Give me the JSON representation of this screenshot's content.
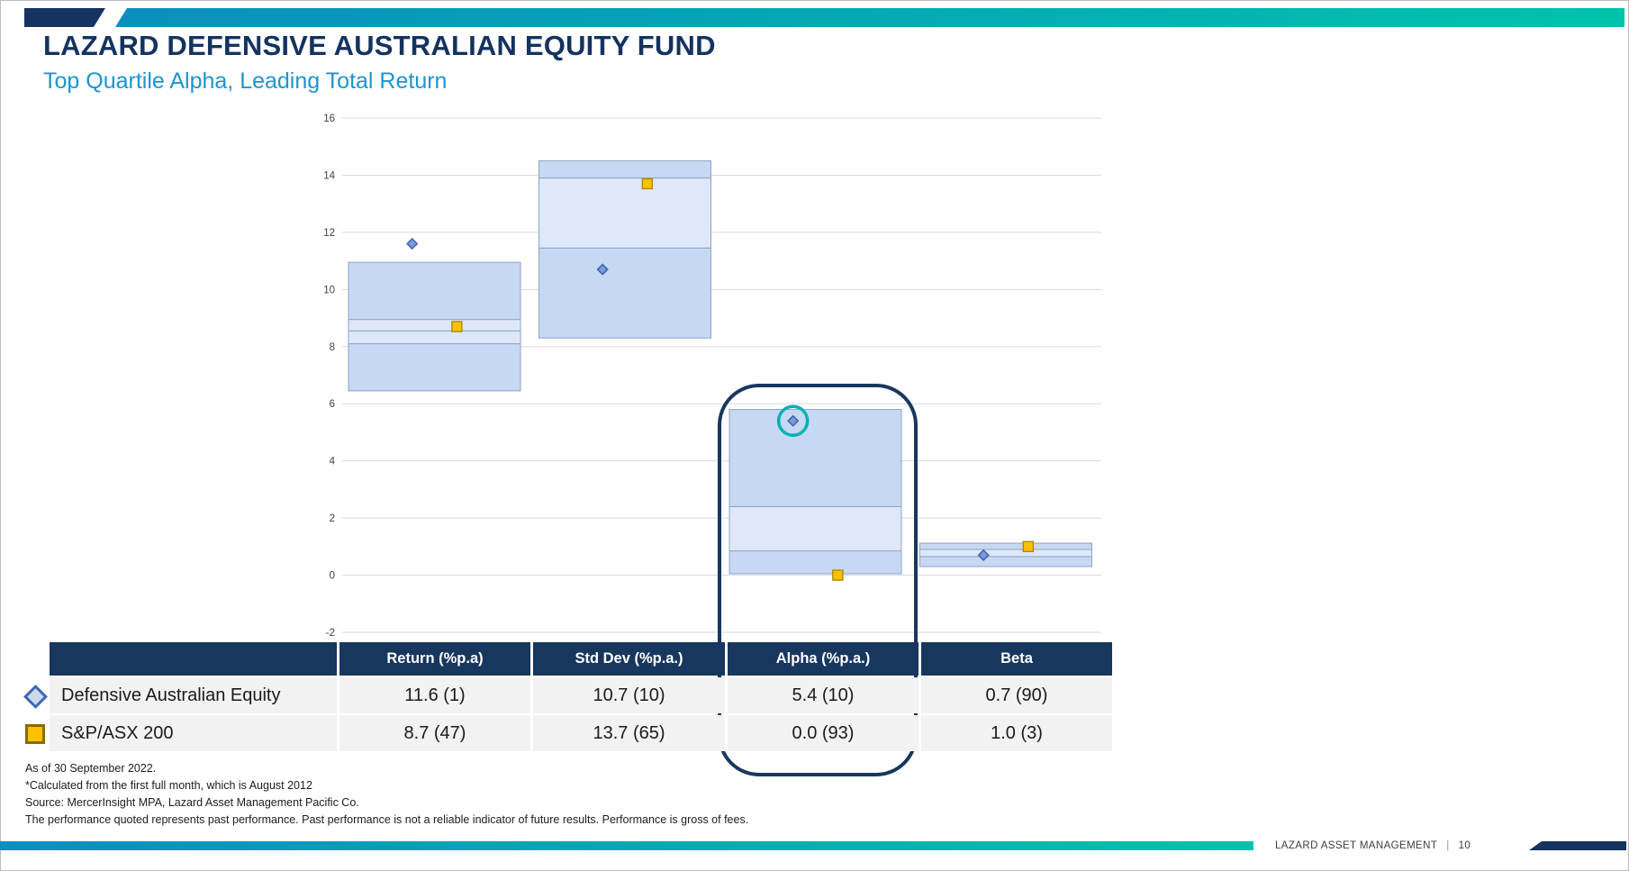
{
  "slide": {
    "title": "LAZARD DEFENSIVE AUSTRALIAN EQUITY FUND",
    "subtitle": "Top Quartile Alpha, Leading Total Return"
  },
  "chart_data": {
    "type": "bar",
    "subtype": "floating-quartile-bars",
    "title": "",
    "categories": [
      "Return (%p.a)",
      "Std Dev (%p.a.)",
      "Alpha (%p.a.)",
      "Beta"
    ],
    "ylim": [
      -2,
      16
    ],
    "yticks": [
      16,
      14,
      12,
      10,
      8,
      6,
      4,
      2,
      0,
      -2
    ],
    "grid": true,
    "legend_position": "table-below",
    "quartile_boxes": [
      {
        "category": "Return (%p.a)",
        "segments": [
          [
            6.45,
            8.1,
            "medium"
          ],
          [
            8.1,
            8.55,
            "light"
          ],
          [
            8.55,
            8.95,
            "light"
          ],
          [
            8.95,
            10.95,
            "medium"
          ]
        ]
      },
      {
        "category": "Std Dev (%p.a.)",
        "segments": [
          [
            8.3,
            11.45,
            "medium"
          ],
          [
            11.45,
            13.9,
            "light"
          ],
          [
            13.9,
            14.5,
            "medium"
          ]
        ]
      },
      {
        "category": "Alpha (%p.a.)",
        "segments": [
          [
            0.05,
            0.85,
            "medium"
          ],
          [
            0.85,
            2.4,
            "light"
          ],
          [
            2.4,
            5.8,
            "medium"
          ]
        ]
      },
      {
        "category": "Beta",
        "segments": [
          [
            0.3,
            0.65,
            "medium"
          ],
          [
            0.65,
            0.9,
            "light"
          ],
          [
            0.9,
            1.12,
            "medium"
          ]
        ]
      }
    ],
    "series": [
      {
        "name": "Defensive Australian Equity",
        "marker": "diamond",
        "values": [
          11.6,
          10.7,
          5.4,
          0.7
        ]
      },
      {
        "name": "S&P/ASX 200",
        "marker": "square",
        "values": [
          8.7,
          13.7,
          0.0,
          1.0
        ]
      }
    ],
    "highlight": {
      "category_index": 2,
      "series_index": 0,
      "shape": "circle",
      "color": "#00b2b5"
    }
  },
  "table": {
    "headers": [
      "",
      "Return (%p.a)",
      "Std Dev (%p.a.)",
      "Alpha (%p.a.)",
      "Beta"
    ],
    "rows": [
      {
        "marker": "diamond",
        "name": "Defensive Australian Equity",
        "values": [
          "11.6 (1)",
          "10.7 (10)",
          "5.4 (10)",
          "0.7 (90)"
        ]
      },
      {
        "marker": "square",
        "name": "S&P/ASX 200",
        "values": [
          "8.7 (47)",
          "13.7 (65)",
          "0.0 (93)",
          "1.0 (3)"
        ]
      }
    ]
  },
  "footnotes": [
    "As of 30 September 2022.",
    "*Calculated from the first full month, which is August 2012",
    "Source: MercerInsight MPA, Lazard Asset Management Pacific Co.",
    "The performance quoted represents past performance. Past performance is not a reliable indicator of future results. Performance is gross of fees."
  ],
  "footer": {
    "brand": "LAZARD ASSET MANAGEMENT",
    "separator": "|",
    "page_number": "10"
  },
  "colors": {
    "navy": "#14335f",
    "accent_a": "#0a8fbe",
    "accent_b": "#00c3ab",
    "subtitle_blue": "#1d95cf",
    "header_bg": "#17375e",
    "highlight_navy": "#17375e",
    "row_bg": "#f2f2f2",
    "box_fill": "#c7d8f2",
    "box_fill_light": "#dfe8f8",
    "box_border": "#8fa5c4",
    "diamond_fill": "#7d9ad6",
    "diamond_stroke": "#3d68b5",
    "square_fill": "#ffc000",
    "square_stroke": "#a98b00",
    "gridline": "#d9d9d9",
    "highlight_teal": "#00b2b5"
  }
}
